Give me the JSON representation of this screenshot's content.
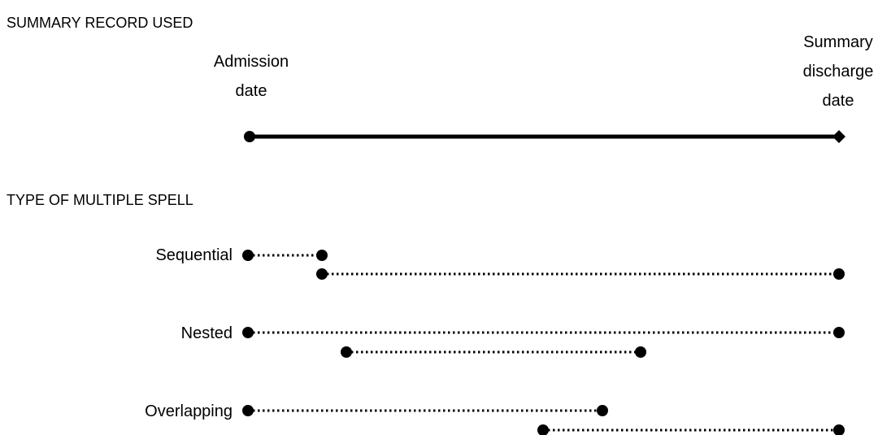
{
  "summary_section": {
    "heading": "SUMMARY RECORD USED",
    "admission_label_line1": "Admission",
    "admission_label_line2": "date",
    "discharge_label_line1": "Summary",
    "discharge_label_line2": "discharge",
    "discharge_label_line3": "date"
  },
  "multiple_spell_section": {
    "heading": "TYPE OF MULTIPLE SPELL",
    "types": [
      {
        "label": "Sequential"
      },
      {
        "label": "Nested"
      },
      {
        "label": "Overlapping"
      }
    ]
  },
  "colors": {
    "ink": "#000000",
    "background": "#ffffff"
  }
}
